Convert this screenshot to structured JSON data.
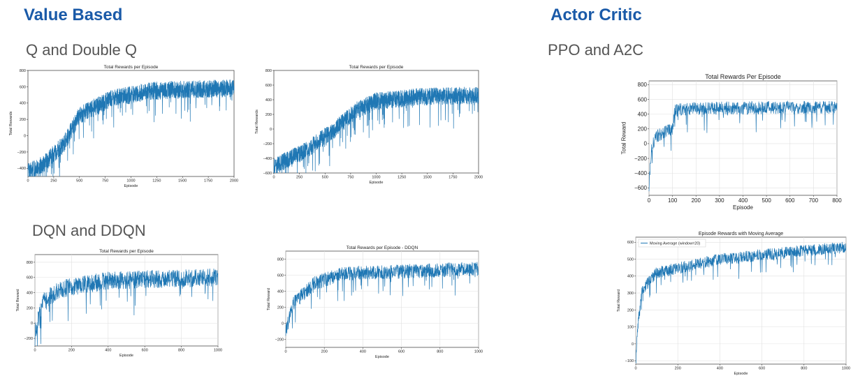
{
  "headings": {
    "value_based": "Value Based",
    "actor_critic": "Actor Critic",
    "q_double_q": "Q and Double Q",
    "dqn_ddqn": "DQN and DDQN",
    "ppo_a2c": "PPO and A2C"
  },
  "colors": {
    "heading": "#1a5aa8",
    "subheading": "#555555",
    "series": "#1f77b4"
  },
  "chart_data": [
    {
      "id": "q",
      "type": "line",
      "title": "Total Rewards per Episode",
      "xlabel": "Episode",
      "ylabel": "Total Rewards",
      "xlim": [
        0,
        2000
      ],
      "ylim": [
        -500,
        800
      ],
      "xticks": [
        0,
        250,
        500,
        750,
        1000,
        1250,
        1500,
        1750,
        2000
      ],
      "yticks": [
        -400,
        -200,
        0,
        200,
        400,
        600,
        800
      ],
      "grid": false,
      "trend": [
        [
          0,
          -450
        ],
        [
          150,
          -350
        ],
        [
          350,
          -100
        ],
        [
          500,
          250
        ],
        [
          800,
          450
        ],
        [
          1200,
          550
        ],
        [
          1600,
          570
        ],
        [
          2000,
          580
        ]
      ],
      "noise": 110,
      "ymax": 730,
      "n": 2000
    },
    {
      "id": "doubleq",
      "type": "line",
      "title": "Total Rewards per Episode",
      "xlabel": "Episode",
      "ylabel": "Total Rewards",
      "xlim": [
        0,
        2000
      ],
      "ylim": [
        -600,
        800
      ],
      "xticks": [
        0,
        250,
        500,
        750,
        1000,
        1250,
        1500,
        1750,
        2000
      ],
      "yticks": [
        -600,
        -400,
        -200,
        0,
        200,
        400,
        600,
        800
      ],
      "grid": false,
      "trend": [
        [
          0,
          -520
        ],
        [
          300,
          -300
        ],
        [
          600,
          0
        ],
        [
          800,
          250
        ],
        [
          1000,
          380
        ],
        [
          1400,
          440
        ],
        [
          2000,
          460
        ]
      ],
      "noise": 120,
      "ymax": 720,
      "n": 2000
    },
    {
      "id": "dqn",
      "type": "line",
      "title": "Total Rewards per Episode",
      "xlabel": "Episode",
      "ylabel": "Total Reward",
      "xlim": [
        0,
        1000
      ],
      "ylim": [
        -300,
        900
      ],
      "xticks": [
        0,
        200,
        400,
        600,
        800,
        1000
      ],
      "yticks": [
        -200,
        0,
        200,
        400,
        600,
        800
      ],
      "grid": true,
      "trend": [
        [
          0,
          -100
        ],
        [
          50,
          300
        ],
        [
          150,
          450
        ],
        [
          400,
          560
        ],
        [
          1000,
          600
        ]
      ],
      "noise": 120,
      "ymax": 850,
      "n": 1000
    },
    {
      "id": "ddqn",
      "type": "line",
      "title": "Total Rewards per Episode - DDQN",
      "xlabel": "Episode",
      "ylabel": "Total Reward",
      "xlim": [
        0,
        1000
      ],
      "ylim": [
        -300,
        900
      ],
      "xticks": [
        0,
        200,
        400,
        600,
        800,
        1000
      ],
      "yticks": [
        -200,
        0,
        200,
        400,
        600,
        800
      ],
      "grid": true,
      "trend": [
        [
          0,
          -100
        ],
        [
          40,
          250
        ],
        [
          150,
          500
        ],
        [
          300,
          620
        ],
        [
          1000,
          680
        ]
      ],
      "noise": 90,
      "ymax": 860,
      "n": 1000
    },
    {
      "id": "ppo",
      "type": "line",
      "title": "Total Rewards Per Episode",
      "xlabel": "Episode",
      "ylabel": "Total Reward",
      "xlim": [
        0,
        800
      ],
      "ylim": [
        -700,
        850
      ],
      "xticks": [
        0,
        100,
        200,
        300,
        400,
        500,
        600,
        700,
        800
      ],
      "yticks": [
        -600,
        -400,
        -200,
        0,
        200,
        400,
        600,
        800
      ],
      "grid": true,
      "trend": [
        [
          0,
          -600
        ],
        [
          10,
          -50
        ],
        [
          30,
          100
        ],
        [
          100,
          200
        ],
        [
          110,
          450
        ],
        [
          200,
          480
        ],
        [
          800,
          490
        ]
      ],
      "noise": 90,
      "ymax": 780,
      "n": 780
    },
    {
      "id": "a2c",
      "type": "line",
      "title": "Episode Rewards with Moving Average",
      "xlabel": "Episode",
      "ylabel": "Total Reward",
      "xlim": [
        0,
        1000
      ],
      "ylim": [
        -120,
        630
      ],
      "xticks": [
        0,
        200,
        400,
        600,
        800,
        1000
      ],
      "yticks": [
        -100,
        0,
        100,
        200,
        300,
        400,
        500,
        600
      ],
      "grid": true,
      "legend": {
        "label": "Moving Average (window=20)",
        "position": "top-left"
      },
      "trend": [
        [
          0,
          -100
        ],
        [
          10,
          100
        ],
        [
          30,
          320
        ],
        [
          100,
          420
        ],
        [
          400,
          500
        ],
        [
          800,
          550
        ],
        [
          1000,
          570
        ]
      ],
      "noise": 35,
      "ymax": 630,
      "n": 1000
    }
  ]
}
